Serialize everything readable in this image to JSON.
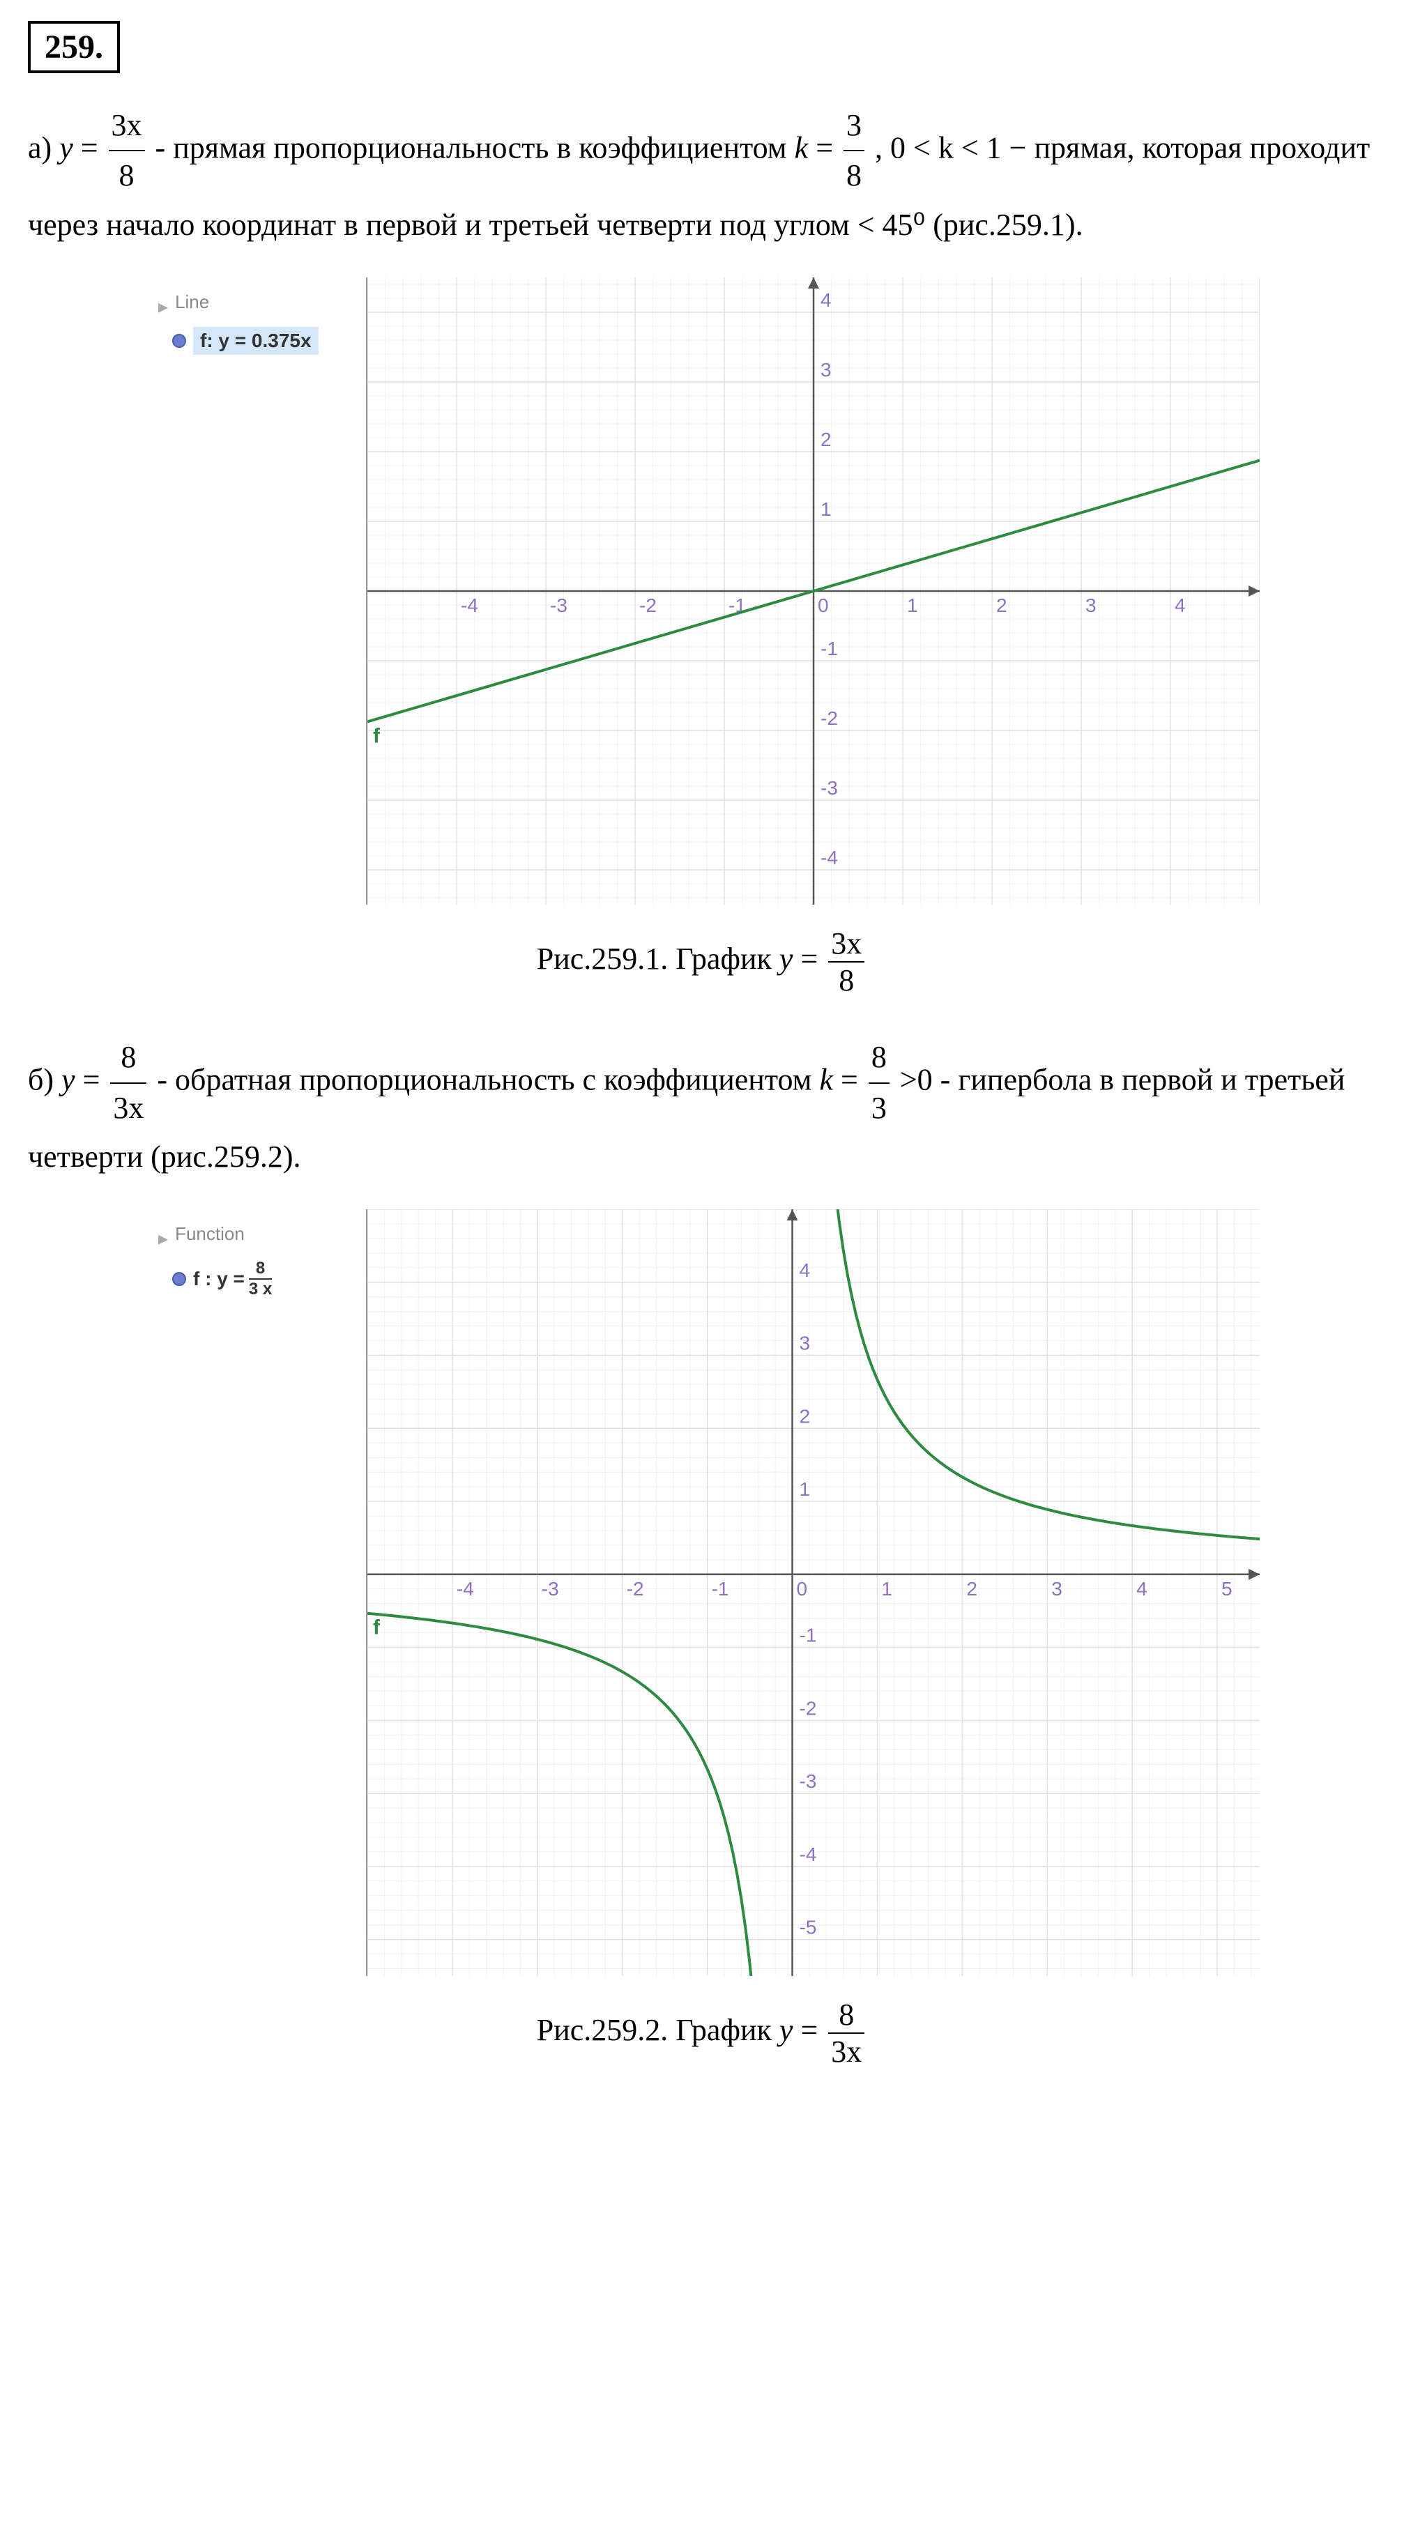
{
  "problem_number": "259.",
  "part_a": {
    "label": "а)",
    "formula_y": "y",
    "formula_num": "3x",
    "formula_den": "8",
    "text_1": " - прямая пропорциональность в коэффициентом ",
    "k_label": "k",
    "k_num": "3",
    "k_den": "8",
    "text_2": ",  0 < k < 1 − прямая, которая проходит через начало координат в первой и третьей четверти под углом < 45⁰ (рис.259.1)."
  },
  "chart_a": {
    "legend_title": "Line",
    "legend_formula": "f: y = 0.375x",
    "legend_dot_fill": "#6b7fd1",
    "legend_dot_border": "#4a5cb0",
    "background_color": "#ffffff",
    "grid_color": "#e0e0e0",
    "axis_color": "#555555",
    "line_color": "#2d8b3f",
    "line_width": 4,
    "xlim": [
      -5,
      5
    ],
    "ylim": [
      -4.5,
      4.5
    ],
    "xtick_step": 1,
    "ytick_step": 1,
    "tick_labels_x": [
      "-4",
      "-3",
      "-2",
      "-1",
      "0",
      "1",
      "2",
      "3",
      "4"
    ],
    "tick_labels_y": [
      "-4",
      "-3",
      "-2",
      "-1",
      "0",
      "1",
      "2",
      "3",
      "4"
    ],
    "function_label": "f",
    "line_points": [
      [
        -5,
        -1.875
      ],
      [
        5,
        1.875
      ]
    ],
    "tick_fontsize": 28,
    "tick_color": "#8e72c2"
  },
  "caption_a": {
    "prefix": "Рис.259.1. График ",
    "y": "y",
    "num": "3x",
    "den": "8"
  },
  "part_b": {
    "label": "б)",
    "formula_y": "y",
    "formula_num": "8",
    "formula_den": "3x",
    "text_1": " - обратная пропорциональность с коэффициентом ",
    "k_label": "k",
    "k_num": "8",
    "k_den": "3",
    "text_2": " >0 - гипербола в первой и третьей четверти (рис.259.2)."
  },
  "chart_b": {
    "legend_title": "Function",
    "legend_f_prefix": "f : y = ",
    "legend_num": "8",
    "legend_den": "3 x",
    "legend_dot_fill": "#6b7fd1",
    "legend_dot_border": "#4a5cb0",
    "background_color": "#ffffff",
    "grid_color": "#e0e0e0",
    "axis_color": "#555555",
    "line_color": "#2d8b3f",
    "line_width": 4,
    "xlim": [
      -5,
      5.5
    ],
    "ylim": [
      -5.5,
      5
    ],
    "xtick_step": 1,
    "ytick_step": 1,
    "tick_labels_x": [
      "-4",
      "-3",
      "-2",
      "-1",
      "0",
      "1",
      "2",
      "3",
      "4",
      "5"
    ],
    "tick_labels_y": [
      "-5",
      "-4",
      "-3",
      "-2",
      "-1",
      "0",
      "1",
      "2",
      "3",
      "4"
    ],
    "function_label": "f",
    "tick_fontsize": 28,
    "tick_color": "#8e72c2"
  },
  "caption_b": {
    "prefix": "Рис.259.2. График ",
    "y": "y",
    "num": "8",
    "den": "3x"
  }
}
